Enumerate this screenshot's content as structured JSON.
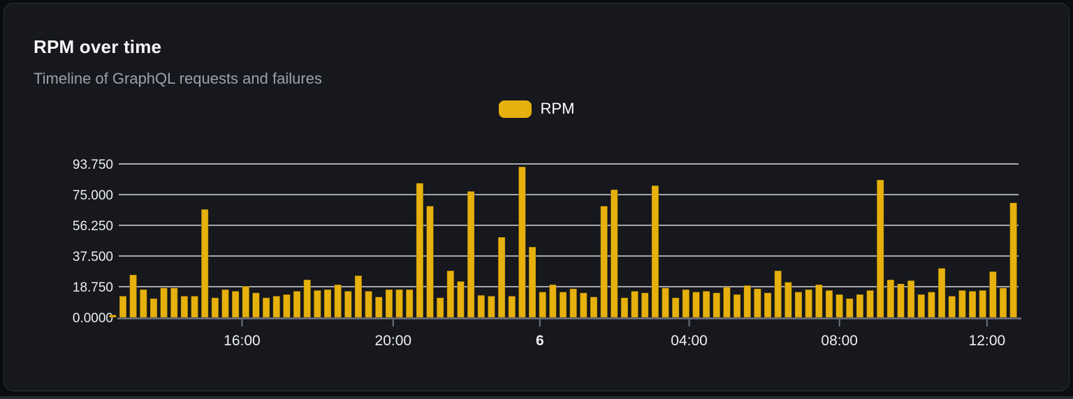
{
  "card": {
    "title": "RPM over time",
    "subtitle": "Timeline of GraphQL requests and failures"
  },
  "legend": {
    "items": [
      {
        "label": "RPM",
        "color": "#e6b00d"
      }
    ]
  },
  "colors": {
    "page_bg": "#0a0c10",
    "card_bg": "#16181d",
    "card_border": "#2c3038",
    "title": "#f7f8f8",
    "subtitle": "#9ba1aa",
    "legend_label": "#ffffff",
    "bar": "#e6b00d",
    "grid_line": "#d5d8df",
    "axis_line": "#70757e",
    "axis_label": "#eceef1",
    "bottom_edge": "#262b33"
  },
  "chart_data": {
    "type": "bar",
    "title": "RPM over time",
    "subtitle": "Timeline of GraphQL requests and failures",
    "legend_position": "top-center",
    "grid": true,
    "series": [
      {
        "name": "RPM",
        "color": "#e6b00d",
        "values": [
          1.5,
          13,
          26,
          17,
          11.5,
          18,
          18,
          13,
          13,
          66,
          12,
          17,
          16,
          19,
          15,
          12,
          13,
          14,
          16,
          23,
          16.5,
          17,
          20,
          16,
          25.5,
          16,
          12.5,
          17,
          17,
          17,
          82,
          68,
          12,
          28.5,
          22,
          77,
          13.5,
          13,
          49,
          13,
          92,
          43,
          15.5,
          20,
          15.5,
          17.5,
          15,
          12.5,
          68,
          78,
          12,
          16,
          15,
          80.5,
          18,
          12,
          17,
          15.5,
          16,
          15,
          18.5,
          14,
          19.5,
          17.5,
          15,
          28.5,
          21.5,
          15.5,
          17,
          20,
          16.5,
          14,
          11.5,
          14,
          16.5,
          84,
          23,
          20.5,
          22.5,
          14,
          15.5,
          30,
          13,
          16.5,
          16,
          16.5,
          28,
          18,
          70
        ]
      }
    ],
    "y_axis": {
      "min": 0,
      "max": 93.75,
      "ticks": [
        {
          "value": 0,
          "label": "0.0000"
        },
        {
          "value": 18.75,
          "label": "18.750"
        },
        {
          "value": 37.5,
          "label": "37.500"
        },
        {
          "value": 56.25,
          "label": "56.250"
        },
        {
          "value": 75,
          "label": "75.000"
        },
        {
          "value": 93.75,
          "label": "93.750"
        }
      ]
    },
    "x_axis": {
      "ticks": [
        {
          "pos": 0.137,
          "label": "16:00",
          "bold": false
        },
        {
          "pos": 0.305,
          "label": "20:00",
          "bold": false
        },
        {
          "pos": 0.468,
          "label": "6",
          "bold": true
        },
        {
          "pos": 0.634,
          "label": "04:00",
          "bold": false
        },
        {
          "pos": 0.801,
          "label": "08:00",
          "bold": false
        },
        {
          "pos": 0.965,
          "label": "12:00",
          "bold": false
        }
      ]
    }
  }
}
